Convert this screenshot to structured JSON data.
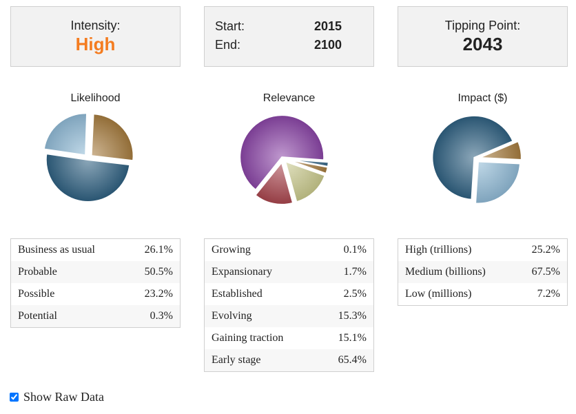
{
  "cards": {
    "intensity": {
      "label": "Intensity:",
      "value": "High",
      "value_color": "#f47c20"
    },
    "dates": {
      "start_label": "Start:",
      "start_value": "2015",
      "end_label": "End:",
      "end_value": "2100"
    },
    "tipping": {
      "label": "Tipping Point:",
      "value": "2043"
    }
  },
  "charts": {
    "likelihood": {
      "title": "Likelihood"
    },
    "relevance": {
      "title": "Relevance"
    },
    "impact": {
      "title": "Impact ($)"
    }
  },
  "chart_data": [
    {
      "type": "pie",
      "title": "Likelihood",
      "categories": [
        "Business as usual",
        "Probable",
        "Possible",
        "Potential"
      ],
      "values": [
        26.1,
        50.5,
        23.2,
        0.3
      ],
      "colors": [
        "#a57b3d",
        "#2d5f80",
        "#8fb9d6",
        "#b04d56"
      ]
    },
    {
      "type": "pie",
      "title": "Relevance",
      "categories": [
        "Growing",
        "Expansionary",
        "Established",
        "Evolving",
        "Gaining traction",
        "Early stage"
      ],
      "values": [
        0.1,
        1.7,
        2.5,
        15.3,
        15.1,
        65.4
      ],
      "colors": [
        "#4a7a9a",
        "#3a6a8a",
        "#a57b3d",
        "#c9c98c",
        "#a8444c",
        "#8a44a6"
      ]
    },
    {
      "type": "pie",
      "title": "Impact ($)",
      "categories": [
        "High (trillions)",
        "Medium (billions)",
        "Low (millions)"
      ],
      "values": [
        25.2,
        67.5,
        7.2
      ],
      "colors": [
        "#8fb9d6",
        "#2d5f80",
        "#a57b3d"
      ]
    }
  ],
  "tables": {
    "likelihood": [
      {
        "label": "Business as usual",
        "value": "26.1%"
      },
      {
        "label": "Probable",
        "value": "50.5%"
      },
      {
        "label": "Possible",
        "value": "23.2%"
      },
      {
        "label": "Potential",
        "value": "0.3%"
      }
    ],
    "relevance": [
      {
        "label": "Growing",
        "value": "0.1%"
      },
      {
        "label": "Expansionary",
        "value": "1.7%"
      },
      {
        "label": "Established",
        "value": "2.5%"
      },
      {
        "label": "Evolving",
        "value": "15.3%"
      },
      {
        "label": "Gaining traction",
        "value": "15.1%"
      },
      {
        "label": "Early stage",
        "value": "65.4%"
      }
    ],
    "impact": [
      {
        "label": "High (trillions)",
        "value": "25.2%"
      },
      {
        "label": "Medium (billions)",
        "value": "67.5%"
      },
      {
        "label": "Low (millions)",
        "value": "7.2%"
      }
    ]
  },
  "raw_data": {
    "label": "Show Raw Data",
    "checked": true
  }
}
